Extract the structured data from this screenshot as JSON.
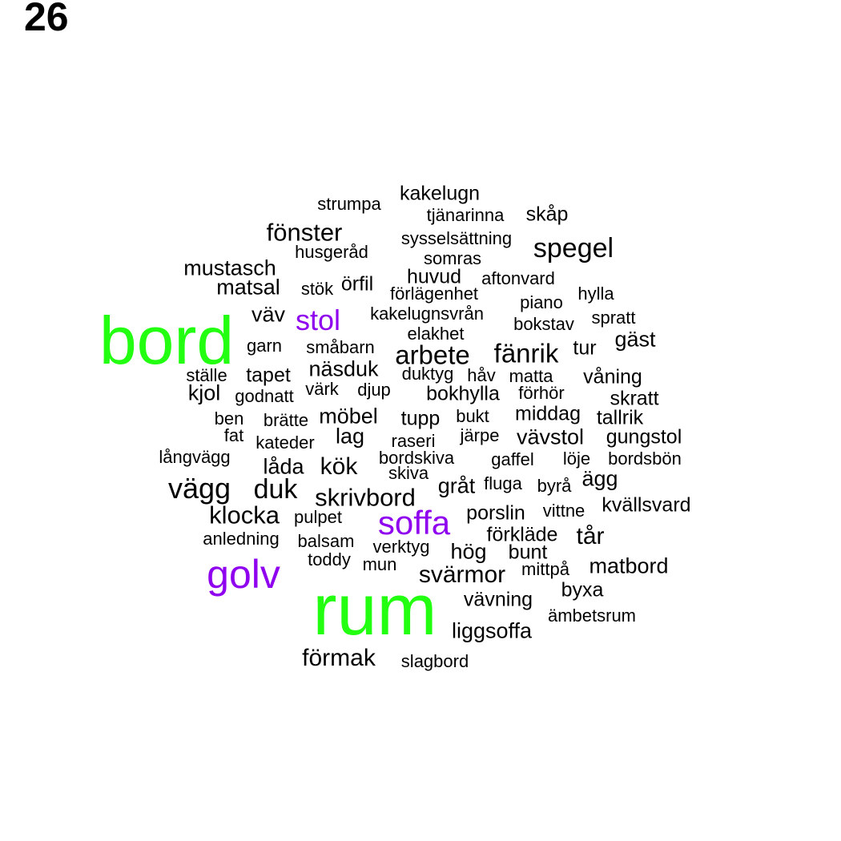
{
  "page_number": "26",
  "colors": {
    "highlight_green": "#22ff11",
    "highlight_purple": "#8f00ee",
    "default": "#000000"
  },
  "words": [
    {
      "text": "rum",
      "level": "xl",
      "color": "green"
    },
    {
      "text": "bord",
      "level": "xl",
      "color": "green"
    },
    {
      "text": "golv",
      "level": "l",
      "color": "purple"
    },
    {
      "text": "soffa",
      "level": "m",
      "color": "purple"
    },
    {
      "text": "stol",
      "level": "s",
      "color": "purple"
    },
    {
      "text": "kakelugn",
      "level": "xs"
    },
    {
      "text": "strumpa",
      "level": "xs"
    },
    {
      "text": "tjänarinna",
      "level": "xs"
    },
    {
      "text": "skåp",
      "level": "xs"
    },
    {
      "text": "fönster",
      "level": "s"
    },
    {
      "text": "sysselsättning",
      "level": "xs"
    },
    {
      "text": "spegel",
      "level": "s"
    },
    {
      "text": "husgeråd",
      "level": "xs"
    },
    {
      "text": "somras",
      "level": "xs"
    },
    {
      "text": "mustasch",
      "level": "s"
    },
    {
      "text": "huvud",
      "level": "xs"
    },
    {
      "text": "aftonvard",
      "level": "xs"
    },
    {
      "text": "matsal",
      "level": "s"
    },
    {
      "text": "stök",
      "level": "xs"
    },
    {
      "text": "örfil",
      "level": "xs"
    },
    {
      "text": "förlägenhet",
      "level": "xs"
    },
    {
      "text": "hylla",
      "level": "xs"
    },
    {
      "text": "piano",
      "level": "xs"
    },
    {
      "text": "väv",
      "level": "xs"
    },
    {
      "text": "kakelugnsvrån",
      "level": "xs"
    },
    {
      "text": "spratt",
      "level": "xs"
    },
    {
      "text": "bokstav",
      "level": "xs"
    },
    {
      "text": "elakhet",
      "level": "xs"
    },
    {
      "text": "gäst",
      "level": "xs"
    },
    {
      "text": "garn",
      "level": "xs"
    },
    {
      "text": "småbarn",
      "level": "xs"
    },
    {
      "text": "arbete",
      "level": "s"
    },
    {
      "text": "fänrik",
      "level": "s"
    },
    {
      "text": "tur",
      "level": "xs"
    },
    {
      "text": "ställe",
      "level": "xs"
    },
    {
      "text": "tapet",
      "level": "xs"
    },
    {
      "text": "näsduk",
      "level": "xs"
    },
    {
      "text": "duktyg",
      "level": "xs"
    },
    {
      "text": "håv",
      "level": "xs"
    },
    {
      "text": "matta",
      "level": "xs"
    },
    {
      "text": "våning",
      "level": "xs"
    },
    {
      "text": "kjol",
      "level": "xs"
    },
    {
      "text": "godnatt",
      "level": "xs"
    },
    {
      "text": "värk",
      "level": "xs"
    },
    {
      "text": "djup",
      "level": "xs"
    },
    {
      "text": "bokhylla",
      "level": "xs"
    },
    {
      "text": "förhör",
      "level": "xs"
    },
    {
      "text": "skratt",
      "level": "xs"
    },
    {
      "text": "ben",
      "level": "xs"
    },
    {
      "text": "brätte",
      "level": "xs"
    },
    {
      "text": "möbel",
      "level": "xs"
    },
    {
      "text": "tupp",
      "level": "xs"
    },
    {
      "text": "bukt",
      "level": "xs"
    },
    {
      "text": "middag",
      "level": "xs"
    },
    {
      "text": "tallrik",
      "level": "xs"
    },
    {
      "text": "fat",
      "level": "xs"
    },
    {
      "text": "kateder",
      "level": "xs"
    },
    {
      "text": "lag",
      "level": "xs"
    },
    {
      "text": "raseri",
      "level": "xs"
    },
    {
      "text": "järpe",
      "level": "xs"
    },
    {
      "text": "vävstol",
      "level": "xs"
    },
    {
      "text": "gungstol",
      "level": "xs"
    },
    {
      "text": "långvägg",
      "level": "xs"
    },
    {
      "text": "låda",
      "level": "xs"
    },
    {
      "text": "kök",
      "level": "s"
    },
    {
      "text": "bordskiva",
      "level": "xs"
    },
    {
      "text": "gaffel",
      "level": "xs"
    },
    {
      "text": "löje",
      "level": "xs"
    },
    {
      "text": "bordsbön",
      "level": "xs"
    },
    {
      "text": "skiva",
      "level": "xs"
    },
    {
      "text": "vägg",
      "level": "s"
    },
    {
      "text": "duk",
      "level": "s"
    },
    {
      "text": "gråt",
      "level": "xs"
    },
    {
      "text": "fluga",
      "level": "xs"
    },
    {
      "text": "byrå",
      "level": "xs"
    },
    {
      "text": "ägg",
      "level": "xs"
    },
    {
      "text": "skrivbord",
      "level": "s"
    },
    {
      "text": "klocka",
      "level": "s"
    },
    {
      "text": "pulpet",
      "level": "xs"
    },
    {
      "text": "porslin",
      "level": "xs"
    },
    {
      "text": "vittne",
      "level": "xs"
    },
    {
      "text": "kvällsvard",
      "level": "xs"
    },
    {
      "text": "anledning",
      "level": "xs"
    },
    {
      "text": "balsam",
      "level": "xs"
    },
    {
      "text": "förkläde",
      "level": "xs"
    },
    {
      "text": "tår",
      "level": "xs"
    },
    {
      "text": "verktyg",
      "level": "xs"
    },
    {
      "text": "hög",
      "level": "xs"
    },
    {
      "text": "bunt",
      "level": "xs"
    },
    {
      "text": "toddy",
      "level": "xs"
    },
    {
      "text": "mun",
      "level": "xs"
    },
    {
      "text": "matbord",
      "level": "xs"
    },
    {
      "text": "svärmor",
      "level": "s"
    },
    {
      "text": "mittpå",
      "level": "xs"
    },
    {
      "text": "byxa",
      "level": "xs"
    },
    {
      "text": "vävning",
      "level": "xs"
    },
    {
      "text": "ämbetsrum",
      "level": "xs"
    },
    {
      "text": "liggsoffa",
      "level": "xs"
    },
    {
      "text": "förmak",
      "level": "s"
    },
    {
      "text": "slagbord",
      "level": "xs"
    }
  ]
}
